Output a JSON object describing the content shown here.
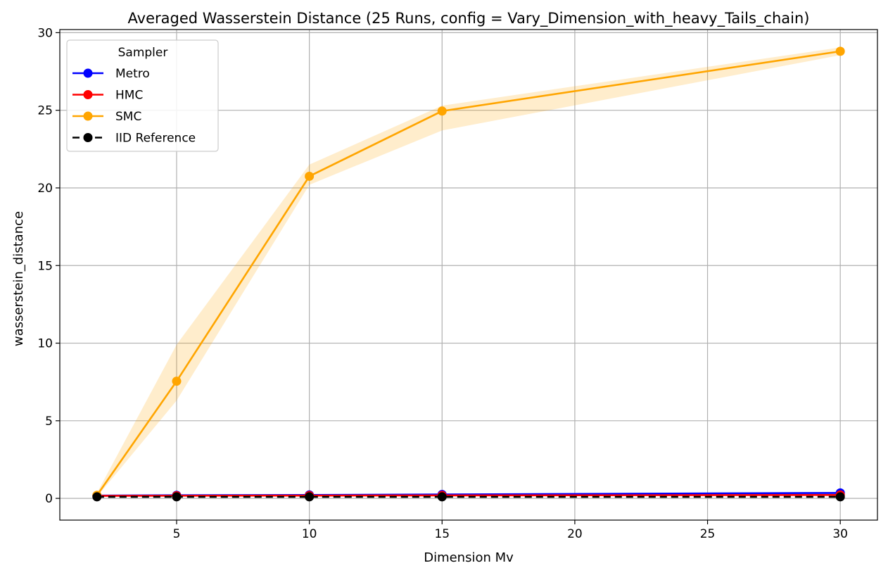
{
  "chart_data": {
    "type": "line",
    "title": "Averaged Wasserstein Distance (25 Runs, config = Vary_Dimension_with_heavy_Tails_chain)",
    "xlabel": "Dimension Mv",
    "ylabel": "wasserstein_distance",
    "xlim": [
      0.6,
      31.4
    ],
    "ylim": [
      -1.4,
      30.2
    ],
    "xticks": [
      5,
      10,
      15,
      20,
      25,
      30
    ],
    "yticks": [
      0,
      5,
      10,
      15,
      20,
      25,
      30
    ],
    "grid": true,
    "legend": {
      "title": "Sampler",
      "placement": "top-left"
    },
    "x": [
      2,
      5,
      10,
      15,
      30
    ],
    "series": [
      {
        "name": "Metro",
        "color": "#0000ff",
        "dashed": false,
        "values": [
          0.18,
          0.2,
          0.22,
          0.25,
          0.35
        ],
        "band_low": [
          0.15,
          0.17,
          0.19,
          0.21,
          0.28
        ],
        "band_high": [
          0.21,
          0.23,
          0.25,
          0.29,
          0.42
        ]
      },
      {
        "name": "HMC",
        "color": "#ff0000",
        "dashed": false,
        "values": [
          0.16,
          0.17,
          0.18,
          0.19,
          0.22
        ],
        "band_low": [
          0.14,
          0.15,
          0.16,
          0.17,
          0.19
        ],
        "band_high": [
          0.18,
          0.19,
          0.2,
          0.21,
          0.25
        ]
      },
      {
        "name": "SMC",
        "color": "#ffa500",
        "dashed": false,
        "values": [
          0.2,
          7.55,
          20.75,
          24.95,
          28.8
        ],
        "band_low": [
          0.1,
          6.3,
          20.2,
          23.7,
          28.55
        ],
        "band_high": [
          0.35,
          9.9,
          21.5,
          25.3,
          29.05
        ]
      },
      {
        "name": "IID Reference",
        "color": "#000000",
        "dashed": true,
        "values": [
          0.1,
          0.1,
          0.1,
          0.1,
          0.1
        ]
      }
    ]
  }
}
